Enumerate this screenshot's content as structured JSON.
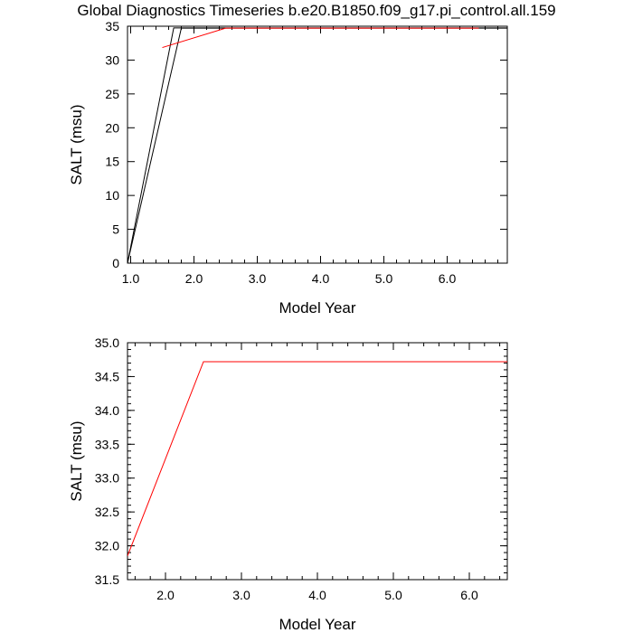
{
  "figure": {
    "title": "Global Diagnostics Timeseries b.e20.B1850.f09_g17.pi_control.all.159"
  },
  "colors": {
    "series_black": "#000000",
    "series_red": "#ff0000",
    "axis": "#000000"
  },
  "chart_data": [
    {
      "type": "line",
      "title": "",
      "xlabel": "Model Year",
      "ylabel": "SALT (msu)",
      "xlim": [
        0.95,
        6.95
      ],
      "ylim": [
        0,
        35
      ],
      "xticks": [
        1.0,
        2.0,
        3.0,
        4.0,
        5.0,
        6.0
      ],
      "xtick_labels": [
        "1.0",
        "2.0",
        "3.0",
        "4.0",
        "5.0",
        "6.0"
      ],
      "yticks": [
        0,
        5,
        10,
        15,
        20,
        25,
        30,
        35
      ],
      "ytick_labels": [
        "0",
        "5",
        "10",
        "15",
        "20",
        "25",
        "30",
        "35"
      ],
      "grid": false,
      "series": [
        {
          "color": "#000000",
          "x": [
            0.95,
            1.68,
            6.95
          ],
          "y": [
            0,
            34.75,
            34.75
          ]
        },
        {
          "color": "#000000",
          "x": [
            0.95,
            1.8,
            6.95
          ],
          "y": [
            0,
            34.72,
            34.72
          ]
        },
        {
          "color": "#ff0000",
          "x": [
            1.5,
            2.5,
            6.5
          ],
          "y": [
            31.85,
            34.72,
            34.72
          ]
        }
      ]
    },
    {
      "type": "line",
      "title": "",
      "xlabel": "Model Year",
      "ylabel": "SALT (msu)",
      "xlim": [
        1.5,
        6.5
      ],
      "ylim": [
        31.5,
        35.0
      ],
      "xticks": [
        2.0,
        3.0,
        4.0,
        5.0,
        6.0
      ],
      "xtick_labels": [
        "2.0",
        "3.0",
        "4.0",
        "5.0",
        "6.0"
      ],
      "yticks": [
        31.5,
        32.0,
        32.5,
        33.0,
        33.5,
        34.0,
        34.5,
        35.0
      ],
      "ytick_labels": [
        "31.5",
        "32.0",
        "32.5",
        "33.0",
        "33.5",
        "34.0",
        "34.5",
        "35.0"
      ],
      "grid": false,
      "series": [
        {
          "color": "#ff0000",
          "x": [
            1.5,
            2.5,
            6.5
          ],
          "y": [
            31.85,
            34.72,
            34.72
          ]
        }
      ]
    }
  ]
}
